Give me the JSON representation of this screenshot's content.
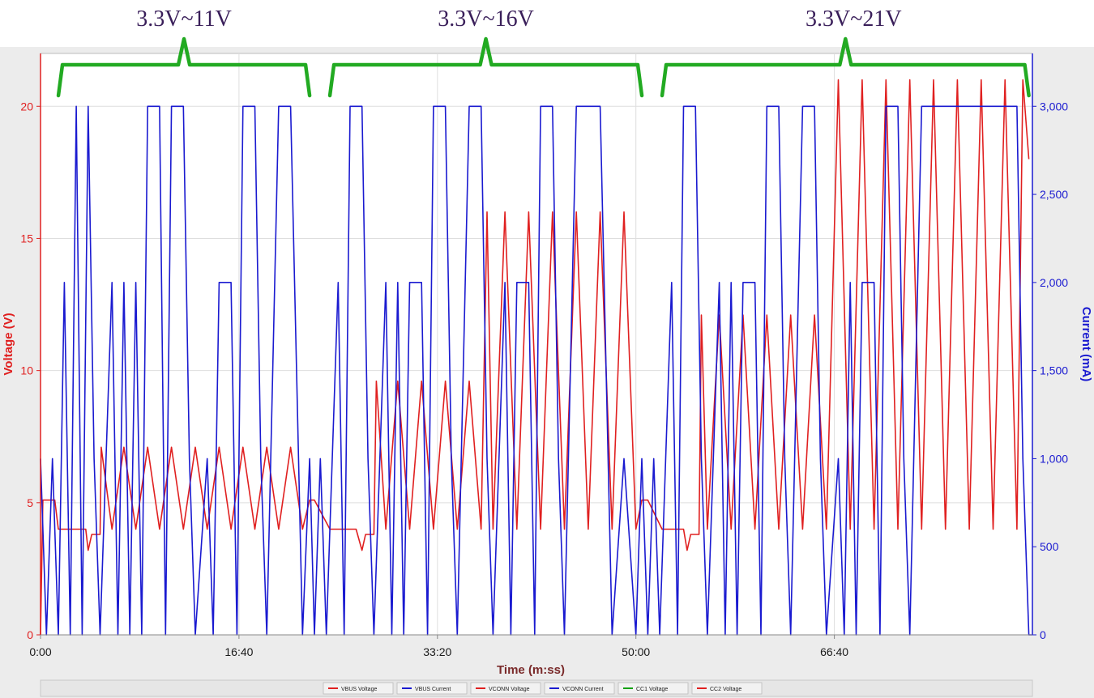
{
  "chart_data": {
    "type": "line",
    "xlabel": "Time (m:ss)",
    "ylabel_left": "Voltage (V)",
    "ylabel_right": "Current (mA)",
    "x_tick_labels": [
      "0:00",
      "16:40",
      "33:20",
      "50:00",
      "66:40"
    ],
    "x_tick_values_min": [
      0,
      16.667,
      33.333,
      50,
      66.667
    ],
    "xlim_min": [
      0,
      83.3
    ],
    "left_ticks": [
      0,
      5,
      10,
      15,
      20
    ],
    "left_tick_labels": [
      "0",
      "5",
      "10",
      "15",
      "20"
    ],
    "ylim_left": [
      0,
      22
    ],
    "right_ticks": [
      0,
      500,
      1000,
      1500,
      2000,
      2500,
      3000
    ],
    "right_tick_labels": [
      "0",
      "500",
      "1,000",
      "1,500",
      "2,000",
      "2,500",
      "3,000"
    ],
    "ylim_right": [
      0,
      3300
    ],
    "annotations": [
      {
        "label": "3.3V~11V",
        "x_range_min": [
          1.5,
          22.6
        ]
      },
      {
        "label": "3.3V~16V",
        "x_range_min": [
          24.3,
          50.5
        ]
      },
      {
        "label": "3.3V~21V",
        "x_range_min": [
          52.2,
          83.0
        ]
      }
    ],
    "legend": [
      {
        "name": "VBUS Voltage",
        "color": "#e02020"
      },
      {
        "name": "VBUS Current",
        "color": "#1a1ad0"
      },
      {
        "name": "VCONN Voltage",
        "color": "#e02020"
      },
      {
        "name": "VCONN Current",
        "color": "#1a1ad0"
      },
      {
        "name": "CC1 Voltage",
        "color": "#10a010"
      },
      {
        "name": "CC2 Voltage",
        "color": "#e02020"
      }
    ],
    "series": [
      {
        "name": "VBUS Voltage",
        "axis": "left",
        "color": "#e02020",
        "points_min": [
          [
            0,
            0
          ],
          [
            0.2,
            5.1
          ],
          [
            1.2,
            5.1
          ],
          [
            1.5,
            4.0
          ],
          [
            3.8,
            4.0
          ],
          [
            4.0,
            3.2
          ],
          [
            4.3,
            3.8
          ],
          [
            5.0,
            3.8
          ],
          [
            5.1,
            7.1
          ],
          [
            6,
            4.0
          ],
          [
            7,
            7.1
          ],
          [
            8,
            4.0
          ],
          [
            9,
            7.1
          ],
          [
            10,
            4.0
          ],
          [
            11,
            7.1
          ],
          [
            12,
            4.0
          ],
          [
            13,
            7.1
          ],
          [
            14,
            4.0
          ],
          [
            15,
            7.1
          ],
          [
            16,
            4.0
          ],
          [
            17,
            7.1
          ],
          [
            18,
            4.0
          ],
          [
            19,
            7.1
          ],
          [
            20,
            4.0
          ],
          [
            21,
            7.1
          ],
          [
            22,
            4.0
          ],
          [
            22.6,
            5.1
          ],
          [
            23,
            5.1
          ],
          [
            24.3,
            4.0
          ],
          [
            26.5,
            4.0
          ],
          [
            27,
            3.2
          ],
          [
            27.3,
            3.8
          ],
          [
            28,
            3.8
          ],
          [
            28.2,
            9.6
          ],
          [
            29,
            4.0
          ],
          [
            30,
            9.6
          ],
          [
            31,
            4.0
          ],
          [
            32,
            9.6
          ],
          [
            33,
            4.0
          ],
          [
            34,
            9.6
          ],
          [
            35,
            4.0
          ],
          [
            36,
            9.6
          ],
          [
            37,
            4.0
          ],
          [
            37.5,
            16.0
          ],
          [
            38,
            4.0
          ],
          [
            39,
            16.0
          ],
          [
            40,
            4.0
          ],
          [
            41,
            16.0
          ],
          [
            42,
            4.0
          ],
          [
            43,
            16.0
          ],
          [
            44,
            4.0
          ],
          [
            45,
            16.0
          ],
          [
            46,
            4.0
          ],
          [
            47,
            16.0
          ],
          [
            48,
            4.0
          ],
          [
            49,
            16.0
          ],
          [
            50,
            4.0
          ],
          [
            50.5,
            5.1
          ],
          [
            51,
            5.1
          ],
          [
            52.2,
            4.0
          ],
          [
            54,
            4.0
          ],
          [
            54.3,
            3.2
          ],
          [
            54.6,
            3.8
          ],
          [
            55.3,
            3.8
          ],
          [
            55.5,
            12.1
          ],
          [
            56,
            4.0
          ],
          [
            57,
            12.1
          ],
          [
            58,
            4.0
          ],
          [
            59,
            12.1
          ],
          [
            60,
            4.0
          ],
          [
            61,
            12.1
          ],
          [
            62,
            4.0
          ],
          [
            63,
            12.1
          ],
          [
            64,
            4.0
          ],
          [
            65,
            12.1
          ],
          [
            66,
            4.0
          ],
          [
            67,
            21.0
          ],
          [
            68,
            4.0
          ],
          [
            69,
            21.0
          ],
          [
            70,
            4.0
          ],
          [
            71,
            21.0
          ],
          [
            72,
            4.0
          ],
          [
            73,
            21.0
          ],
          [
            74,
            4.0
          ],
          [
            75,
            21.0
          ],
          [
            76,
            4.0
          ],
          [
            77,
            21.0
          ],
          [
            78,
            4.0
          ],
          [
            79,
            21.0
          ],
          [
            80,
            4.0
          ],
          [
            81,
            21.0
          ],
          [
            82,
            4.0
          ],
          [
            82.5,
            21.0
          ],
          [
            83,
            18.0
          ]
        ]
      },
      {
        "name": "VBUS Current",
        "axis": "right",
        "color": "#1a1ad0",
        "points_min": [
          [
            0,
            1000
          ],
          [
            0.5,
            0
          ],
          [
            1,
            1000
          ],
          [
            1.5,
            0
          ],
          [
            2,
            2000
          ],
          [
            2.5,
            0
          ],
          [
            3,
            3000
          ],
          [
            3.5,
            0
          ],
          [
            4,
            3000
          ],
          [
            4.5,
            1000
          ],
          [
            5,
            0
          ],
          [
            6,
            2000
          ],
          [
            6.5,
            0
          ],
          [
            7,
            2000
          ],
          [
            7.5,
            0
          ],
          [
            8,
            2000
          ],
          [
            8.5,
            0
          ],
          [
            9,
            3000
          ],
          [
            10,
            3000
          ],
          [
            10.5,
            0
          ],
          [
            11,
            3000
          ],
          [
            12,
            3000
          ],
          [
            12.5,
            1000
          ],
          [
            13,
            0
          ],
          [
            14,
            1000
          ],
          [
            14.5,
            0
          ],
          [
            15,
            2000
          ],
          [
            16,
            2000
          ],
          [
            16.5,
            0
          ],
          [
            17,
            3000
          ],
          [
            18,
            3000
          ],
          [
            18.5,
            1000
          ],
          [
            19,
            0
          ],
          [
            20,
            3000
          ],
          [
            21,
            3000
          ],
          [
            22,
            0
          ],
          [
            22.6,
            1000
          ],
          [
            23,
            0
          ],
          [
            23.5,
            1000
          ],
          [
            24,
            0
          ],
          [
            25,
            2000
          ],
          [
            25.5,
            0
          ],
          [
            26,
            3000
          ],
          [
            27,
            3000
          ],
          [
            27.5,
            1000
          ],
          [
            28,
            0
          ],
          [
            29,
            2000
          ],
          [
            29.5,
            0
          ],
          [
            30,
            2000
          ],
          [
            30.5,
            0
          ],
          [
            31,
            2000
          ],
          [
            32,
            2000
          ],
          [
            32.5,
            0
          ],
          [
            33,
            3000
          ],
          [
            34,
            3000
          ],
          [
            34.5,
            1000
          ],
          [
            35,
            0
          ],
          [
            36,
            3000
          ],
          [
            37,
            3000
          ],
          [
            37.5,
            1000
          ],
          [
            38,
            0
          ],
          [
            39,
            2000
          ],
          [
            39.5,
            0
          ],
          [
            40,
            2000
          ],
          [
            41,
            2000
          ],
          [
            41.5,
            0
          ],
          [
            42,
            3000
          ],
          [
            43,
            3000
          ],
          [
            43.5,
            1000
          ],
          [
            44,
            0
          ],
          [
            45,
            3000
          ],
          [
            46,
            3000
          ],
          [
            47,
            3000
          ],
          [
            48,
            0
          ],
          [
            49,
            1000
          ],
          [
            50,
            0
          ],
          [
            50.5,
            1000
          ],
          [
            51,
            0
          ],
          [
            51.5,
            1000
          ],
          [
            52,
            0
          ],
          [
            53,
            2000
          ],
          [
            53.5,
            0
          ],
          [
            54,
            3000
          ],
          [
            55,
            3000
          ],
          [
            55.5,
            1000
          ],
          [
            56,
            0
          ],
          [
            57,
            2000
          ],
          [
            57.5,
            0
          ],
          [
            58,
            2000
          ],
          [
            58.5,
            0
          ],
          [
            59,
            2000
          ],
          [
            60,
            2000
          ],
          [
            60.5,
            0
          ],
          [
            61,
            3000
          ],
          [
            62,
            3000
          ],
          [
            62.5,
            1000
          ],
          [
            63,
            0
          ],
          [
            64,
            3000
          ],
          [
            65,
            3000
          ],
          [
            65.5,
            1000
          ],
          [
            66,
            0
          ],
          [
            67,
            1000
          ],
          [
            67.5,
            0
          ],
          [
            68,
            2000
          ],
          [
            68.5,
            0
          ],
          [
            69,
            2000
          ],
          [
            70,
            2000
          ],
          [
            70.5,
            0
          ],
          [
            71,
            3000
          ],
          [
            72,
            3000
          ],
          [
            72.5,
            1000
          ],
          [
            73,
            0
          ],
          [
            74,
            3000
          ],
          [
            75,
            3000
          ],
          [
            76,
            3000
          ],
          [
            77,
            3000
          ],
          [
            78,
            3000
          ],
          [
            79,
            3000
          ],
          [
            80,
            3000
          ],
          [
            81,
            3000
          ],
          [
            82,
            3000
          ],
          [
            82.5,
            1000
          ],
          [
            83,
            0
          ],
          [
            83.3,
            0
          ]
        ]
      }
    ]
  }
}
